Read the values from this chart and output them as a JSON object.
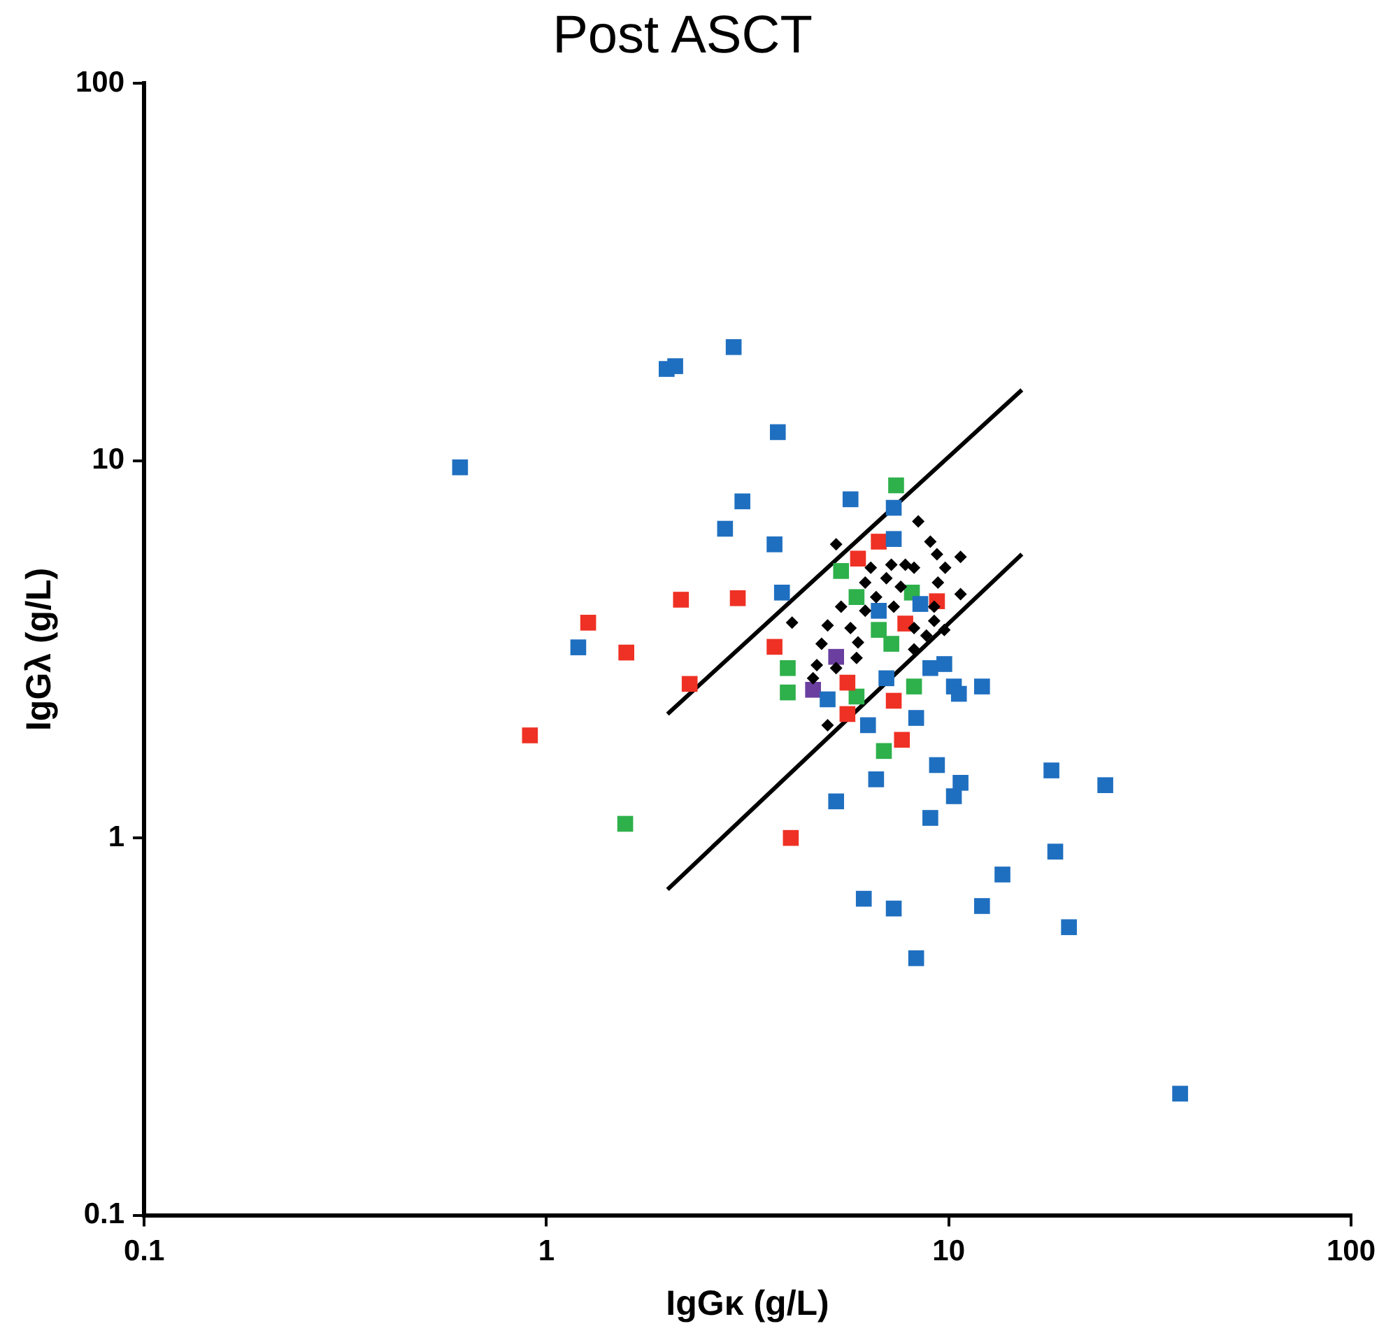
{
  "chart_data": {
    "type": "scatter",
    "title": "Post ASCT",
    "xlabel": "IgGκ (g/L)",
    "ylabel": "IgGλ (g/L)",
    "log": "xy",
    "grid": false,
    "legend": false,
    "xlim": [
      0.1,
      100
    ],
    "xticks": [
      0.1,
      1,
      10,
      100
    ],
    "ylim": [
      0.1,
      100
    ],
    "yticks": [
      0.1,
      1,
      10,
      100
    ],
    "series": [
      {
        "color": "#000000",
        "marker": "diamond",
        "x": [
          8.4,
          9.0,
          9.35,
          10.7,
          7.2,
          8.2,
          9.8,
          6.2,
          7.0,
          9.4,
          10.7,
          5.25,
          6.6,
          7.6,
          5.4,
          5.0,
          5.7,
          4.08,
          5.95,
          4.83,
          9.2,
          9.75,
          8.8,
          8.2,
          5.9,
          4.7,
          4.6,
          5.0,
          6.2,
          7.3,
          6.4,
          8.2,
          9.2,
          5.25,
          7.8
        ],
        "values": [
          6.9,
          6.1,
          5.65,
          5.56,
          5.3,
          5.2,
          5.2,
          4.75,
          4.88,
          4.75,
          4.43,
          6.0,
          4.35,
          4.63,
          4.1,
          3.66,
          3.6,
          3.72,
          3.3,
          3.27,
          3.76,
          3.56,
          3.44,
          3.16,
          3.0,
          2.87,
          2.65,
          1.99,
          4.0,
          4.1,
          5.2,
          3.6,
          4.1,
          2.82,
          5.3
        ]
      },
      {
        "color": "#1f6fc0",
        "marker": "square",
        "x": [
          0.61,
          1.99,
          2.09,
          2.92,
          3.76,
          3.07,
          2.78,
          3.69,
          3.85,
          1.2,
          5.7,
          7.3,
          7.3,
          6.7,
          8.5,
          7.0,
          9.0,
          9.75,
          10.3,
          12.1,
          10.6,
          5.0,
          6.3,
          8.3,
          6.6,
          9.35,
          10.3,
          9.0,
          5.25,
          18,
          24.5,
          18.4,
          13.6,
          12.1,
          19.9,
          6.15,
          7.3,
          8.3,
          37.6,
          10.7
        ],
        "values": [
          9.6,
          17.5,
          17.8,
          20,
          11.9,
          7.8,
          6.6,
          6.0,
          4.47,
          3.2,
          7.9,
          7.5,
          6.2,
          4.0,
          4.17,
          2.65,
          2.82,
          2.89,
          2.52,
          2.52,
          2.41,
          2.33,
          1.99,
          2.08,
          1.43,
          1.56,
          1.29,
          1.13,
          1.25,
          1.51,
          1.38,
          0.92,
          0.8,
          0.66,
          0.58,
          0.69,
          0.65,
          0.48,
          0.21,
          1.4
        ]
      },
      {
        "color": "#ee3124",
        "marker": "square",
        "x": [
          0.91,
          1.27,
          1.58,
          2.16,
          2.99,
          2.27,
          3.69,
          4.05,
          5.95,
          6.7,
          7.8,
          9.35,
          5.6,
          7.3,
          5.6,
          7.65
        ],
        "values": [
          1.87,
          3.72,
          3.1,
          4.28,
          4.32,
          2.56,
          3.21,
          1.0,
          5.5,
          6.1,
          3.7,
          4.24,
          2.58,
          2.31,
          2.13,
          1.82
        ]
      },
      {
        "color": "#2eb04b",
        "marker": "square",
        "x": [
          1.57,
          7.4,
          5.4,
          5.9,
          3.98,
          3.98,
          6.7,
          7.2,
          8.2,
          5.9,
          6.9,
          8.1
        ],
        "values": [
          1.09,
          8.6,
          5.1,
          4.35,
          2.82,
          2.43,
          3.56,
          3.27,
          2.52,
          2.37,
          1.7,
          4.47
        ]
      },
      {
        "color": "#6a3fa0",
        "marker": "square",
        "x": [
          5.25,
          4.6
        ],
        "values": [
          3.02,
          2.47
        ]
      },
      {
        "type": "line",
        "color": "#000000",
        "marker": "none",
        "line_style": "solid",
        "x": [
          2,
          15.2
        ],
        "values": [
          2.13,
          15.4
        ]
      },
      {
        "type": "line",
        "color": "#000000",
        "marker": "none",
        "line_style": "solid",
        "x": [
          2,
          15.2
        ],
        "values": [
          0.73,
          5.65
        ]
      }
    ]
  }
}
